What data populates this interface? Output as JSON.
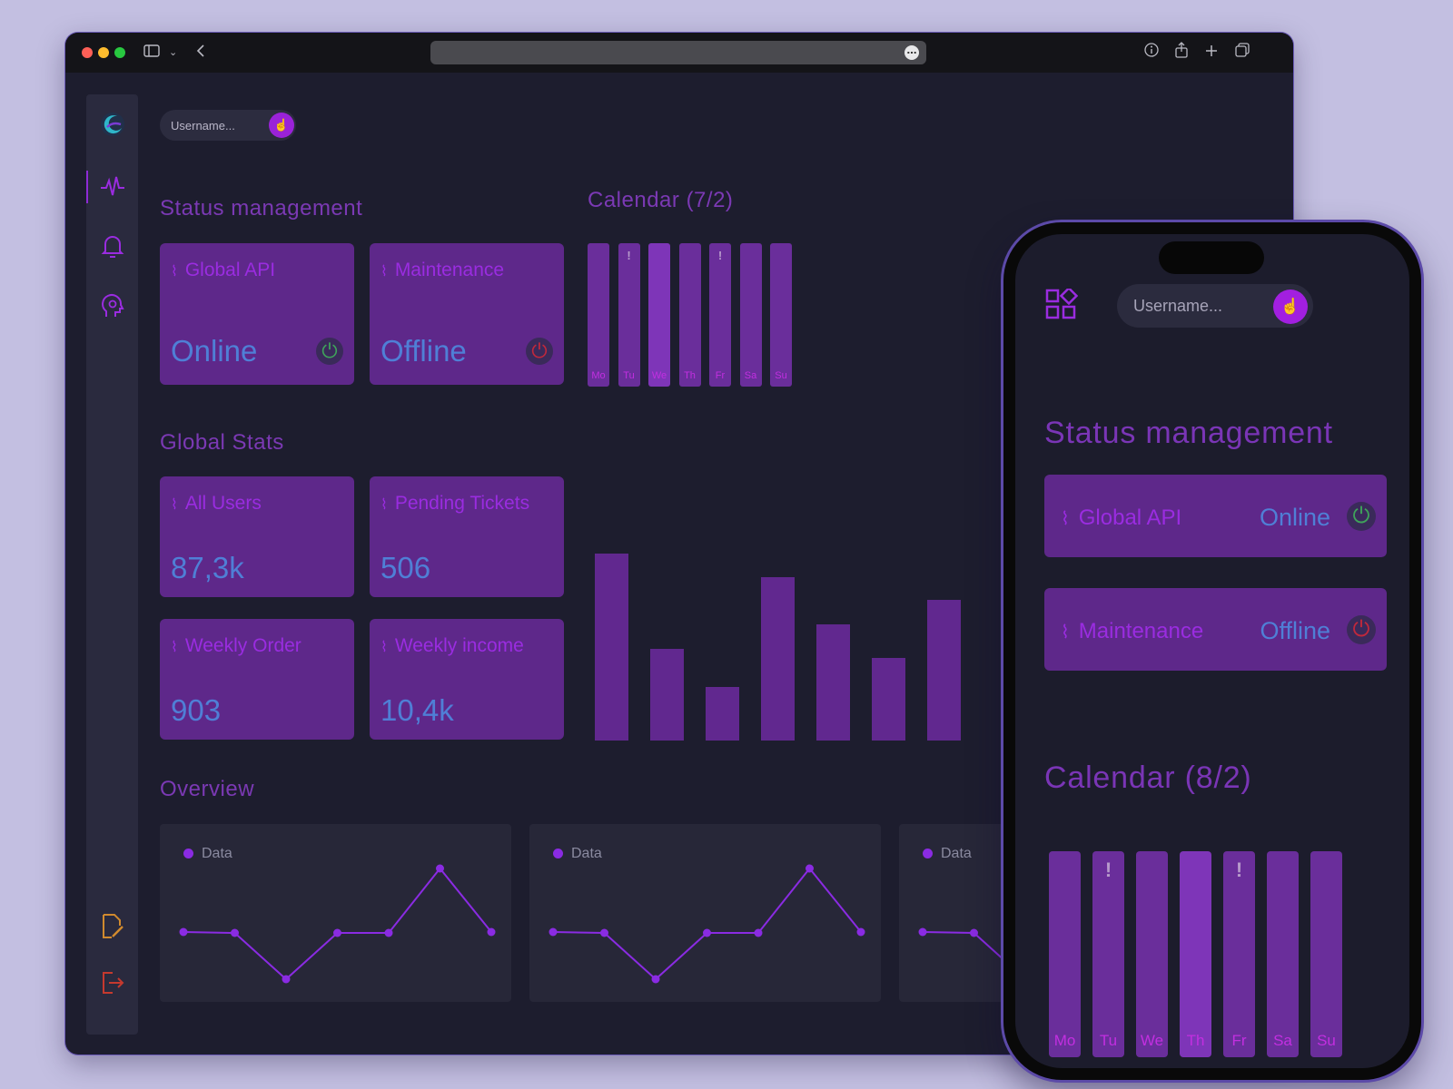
{
  "browser": {
    "traffic_colors": [
      "#fe5f57",
      "#febc2e",
      "#28c840"
    ],
    "toolbar_icons": [
      "sidebar-icon",
      "chevron-down-icon",
      "back-icon",
      "info-icon",
      "share-icon",
      "new-tab-icon",
      "tabs-icon"
    ],
    "url_more_icon": "more-icon"
  },
  "sidebar": {
    "items": [
      "logo-icon",
      "activity-icon",
      "bell-icon",
      "settings-head-icon"
    ],
    "bottom_items": [
      "edit-file-icon",
      "logout-icon"
    ]
  },
  "search": {
    "placeholder": "Username..."
  },
  "status": {
    "title": "Status management",
    "cards": [
      {
        "label": "Global API",
        "value": "Online",
        "state_color": "#3fa35a"
      },
      {
        "label": "Maintenance",
        "value": "Offline",
        "state_color": "#c0283c"
      }
    ]
  },
  "calendar": {
    "title": "Calendar (7/2)",
    "days": [
      "Mo",
      "Tu",
      "We",
      "Th",
      "Fr",
      "Sa",
      "Su"
    ],
    "alerts": [
      false,
      true,
      false,
      false,
      true,
      false,
      false
    ],
    "highlight": "We"
  },
  "stats": {
    "title": "Global Stats",
    "cards": [
      {
        "label": "All Users",
        "value": "87,3k"
      },
      {
        "label": "Pending Tickets",
        "value": "506"
      },
      {
        "label": "Weekly Order",
        "value": "903"
      },
      {
        "label": "Weekly income",
        "value": "10,4k"
      }
    ]
  },
  "chart_data": {
    "type": "bar",
    "values": [
      208,
      102,
      60,
      182,
      129,
      92,
      156
    ],
    "ylim": [
      0,
      210
    ]
  },
  "overview": {
    "title": "Overview",
    "cards": [
      {
        "legend": "Data"
      },
      {
        "legend": "Data"
      },
      {
        "legend": "Data"
      }
    ],
    "line_values": [
      52,
      51,
      0,
      51,
      51,
      122,
      52
    ],
    "ylim": [
      0,
      122
    ]
  },
  "phone": {
    "menu_icon": "apps-icon",
    "search_placeholder": "Username...",
    "status_title": "Status management",
    "cards": [
      {
        "label": "Global API",
        "value": "Online"
      },
      {
        "label": "Maintenance",
        "value": "Offline"
      }
    ],
    "calendar_title": "Calendar (8/2)",
    "days": [
      "Mo",
      "Tu",
      "We",
      "Th",
      "Fr",
      "Sa",
      "Su"
    ],
    "alerts": [
      false,
      true,
      false,
      false,
      true,
      false,
      false
    ],
    "highlight": "Th"
  }
}
